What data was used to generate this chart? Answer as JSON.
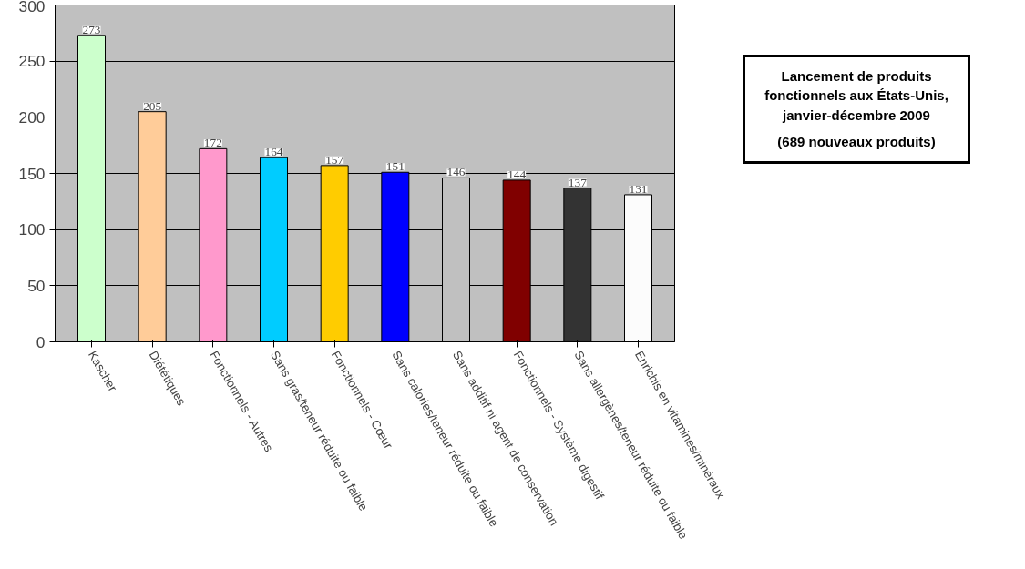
{
  "chart_data": {
    "type": "bar",
    "title": "Lancement de produits fonctionnels aux États-Unis, janvier-décembre 2009",
    "subtitle": "(689 nouveaux produits)",
    "categories": [
      "Kascher",
      "Diététiques",
      "Fonctionnels - Autres",
      "Sans gras/teneur réduite ou faible",
      "Fonctionnels - Cœur",
      "Sans calories/teneur réduite ou faible",
      "Sans additif ni agent de conservation",
      "Fonctionnels - Système digestif",
      "Sans allergènes/teneur réduite ou faible",
      "Enrichis en vitamines/minéraux"
    ],
    "values": [
      273,
      205,
      172,
      164,
      157,
      151,
      146,
      144,
      137,
      131
    ],
    "colors": [
      "#ccffcc",
      "#ffcc99",
      "#ff99cc",
      "#00ccff",
      "#ffcc00",
      "#0000ff",
      "#c0c0c0",
      "#800000",
      "#333333",
      "#fcfcfc"
    ],
    "ylim": [
      0,
      300
    ],
    "yticks": [
      0,
      50,
      100,
      150,
      200,
      250,
      300
    ],
    "grid": "y",
    "data_labels": true
  }
}
